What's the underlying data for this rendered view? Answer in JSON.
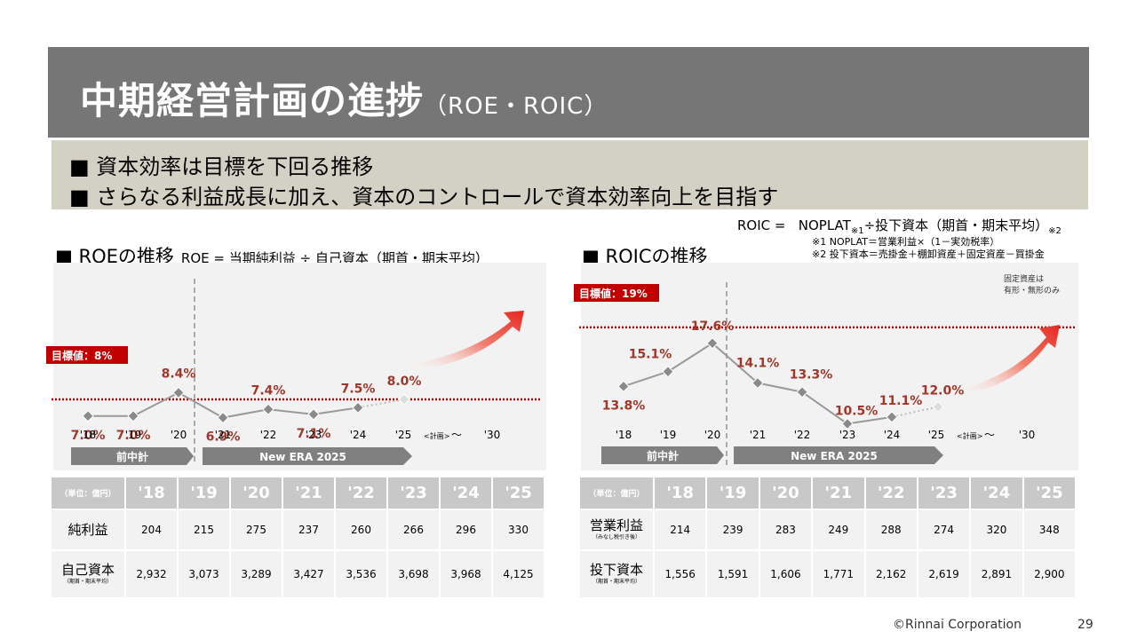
{
  "header": {
    "title": "中期経営計画の進捗",
    "subtitle": "（ROE・ROIC）"
  },
  "bullets": [
    "■ 資本効率は目標を下回る推移",
    "■ さらなる利益成長に加え、資本のコントロールで資本効率向上を目指す"
  ],
  "roic_formula": {
    "lhs": "ROIC =",
    "numerator": "NOPLAT",
    "n1": "※1",
    "divider": "÷投下資本（期首・期末平均）",
    "n2": "※2"
  },
  "roic_notes": [
    "※1 NOPLAT＝営業利益×（1－実効税率）",
    "※2 投下資本＝売掛金＋棚卸資産＋固定資産－買掛金"
  ],
  "roic_fixed_assets_note": [
    "固定資産は",
    "有形・無形のみ"
  ],
  "roe_section": {
    "title": "■ ROEの推移",
    "formula": "ROE = 当期純利益 ÷ 自己資本（期首・期末平均）"
  },
  "roic_section": {
    "title": "■ ROICの推移"
  },
  "colors": {
    "accent_red": "#c00000",
    "line_gray": "#999999",
    "marker_gray": "#8a8a8a",
    "arrow_red": "#e8271f",
    "phase_bar": "#808080",
    "table_header": "#c8c8c8"
  },
  "chart_data": [
    {
      "type": "line",
      "categories": [
        "'18",
        "'19",
        "'20",
        "'21",
        "'22",
        "'23",
        "'24",
        "'25",
        "'30"
      ],
      "plan_label": "<計画>",
      "tilde": "～",
      "values": [
        7.0,
        7.0,
        8.4,
        6.9,
        7.4,
        7.1,
        7.5,
        8.0
      ],
      "labels": [
        "7.0%",
        "7.0%",
        "8.4%",
        "6.9%",
        "7.4%",
        "7.1%",
        "7.5%",
        "8.0%"
      ],
      "target": {
        "value": 8,
        "label": "目標値：8%"
      },
      "phases": [
        "前中計",
        "New ERA 2025"
      ],
      "ylim": [
        6,
        10
      ]
    },
    {
      "type": "line",
      "categories": [
        "'18",
        "'19",
        "'20",
        "'21",
        "'22",
        "'23",
        "'24",
        "'25",
        "'30"
      ],
      "plan_label": "<計画>",
      "tilde": "～",
      "values": [
        13.8,
        15.1,
        17.6,
        14.1,
        13.3,
        10.5,
        11.1,
        12.0
      ],
      "labels": [
        "13.8%",
        "15.1%",
        "17.6%",
        "14.1%",
        "13.3%",
        "10.5%",
        "11.1%",
        "12.0%"
      ],
      "target": {
        "value": 19,
        "label": "目標値：19%"
      },
      "phases": [
        "前中計",
        "New ERA 2025"
      ],
      "ylim": [
        8,
        21
      ]
    },
    {
      "type": "table",
      "corner": "（単位：億円）",
      "columns": [
        "'18",
        "'19",
        "'20",
        "'21",
        "'22",
        "'23",
        "'24",
        "'25"
      ],
      "rows": [
        {
          "label": "純利益",
          "note": "",
          "values": [
            "204",
            "215",
            "275",
            "237",
            "260",
            "266",
            "296",
            "330"
          ]
        },
        {
          "label": "自己資本",
          "note": "（期首・期末平均）",
          "values": [
            "2,932",
            "3,073",
            "3,289",
            "3,427",
            "3,536",
            "3,698",
            "3,968",
            "4,125"
          ]
        }
      ]
    },
    {
      "type": "table",
      "corner": "（単位：億円）",
      "columns": [
        "'18",
        "'19",
        "'20",
        "'21",
        "'22",
        "'23",
        "'24",
        "'25"
      ],
      "rows": [
        {
          "label": "営業利益",
          "note": "（みなし税引き後）",
          "values": [
            "214",
            "239",
            "283",
            "249",
            "288",
            "274",
            "320",
            "348"
          ]
        },
        {
          "label": "投下資本",
          "note": "（期首・期末平均）",
          "values": [
            "1,556",
            "1,591",
            "1,606",
            "1,771",
            "2,162",
            "2,619",
            "2,891",
            "2,900"
          ]
        }
      ]
    }
  ],
  "footer": {
    "copyright": "©Rinnai Corporation",
    "page": "29"
  }
}
